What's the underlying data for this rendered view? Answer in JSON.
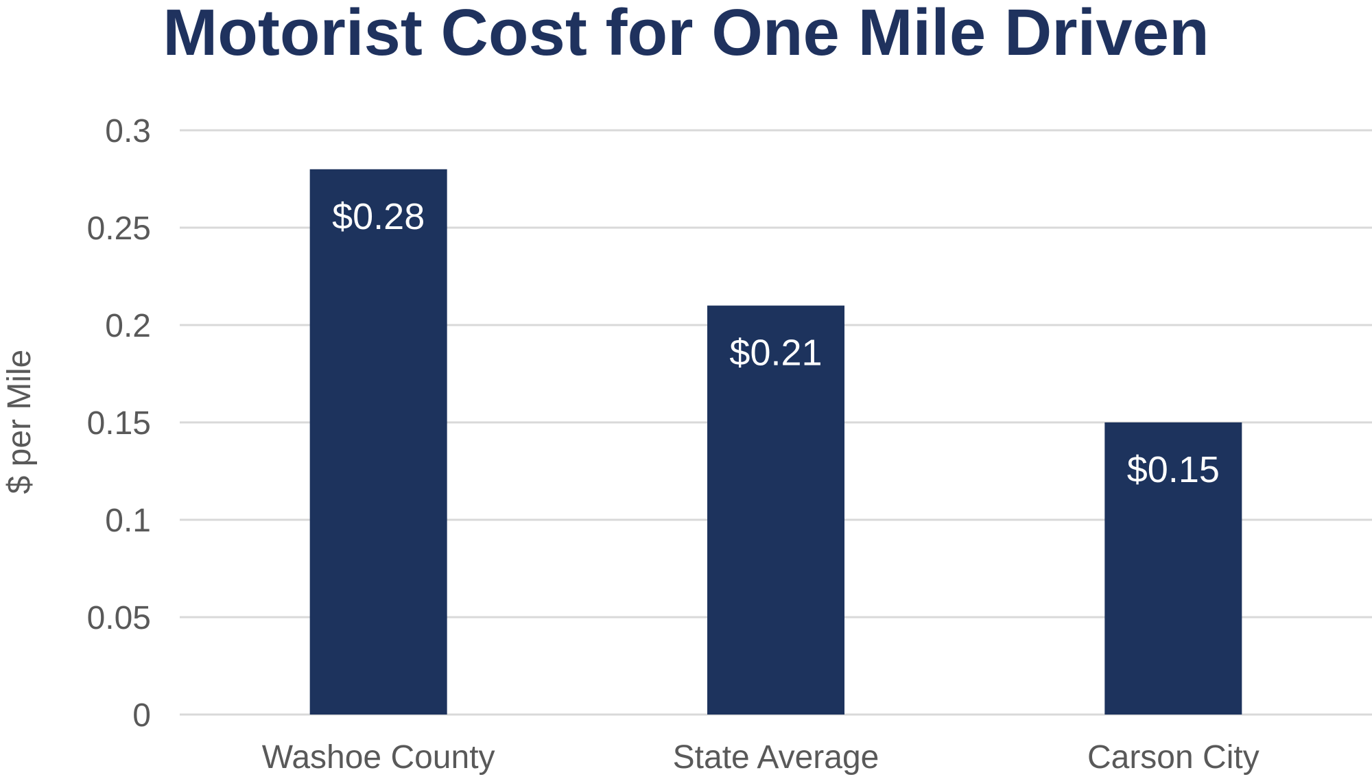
{
  "chart_data": {
    "type": "bar",
    "title": "Motorist Cost for One Mile Driven",
    "xlabel": "",
    "ylabel": "$ per Mile",
    "categories": [
      "Washoe County",
      "State Average",
      "Carson City"
    ],
    "values": [
      0.28,
      0.21,
      0.15
    ],
    "data_labels": [
      "$0.28",
      "$0.21",
      "$0.15"
    ],
    "ylim": [
      0,
      0.3
    ],
    "y_ticks": [
      0,
      0.05,
      0.1,
      0.15,
      0.2,
      0.25,
      0.3
    ],
    "y_tick_labels": [
      "0",
      "0.05",
      "0.1",
      "0.15",
      "0.2",
      "0.25",
      "0.3"
    ],
    "grid": true,
    "legend": "none",
    "colors": {
      "bar": "#1d335d",
      "title": "#1f325e",
      "grid": "#d9d9d9",
      "text": "#595959",
      "data_label": "#ffffff"
    }
  }
}
